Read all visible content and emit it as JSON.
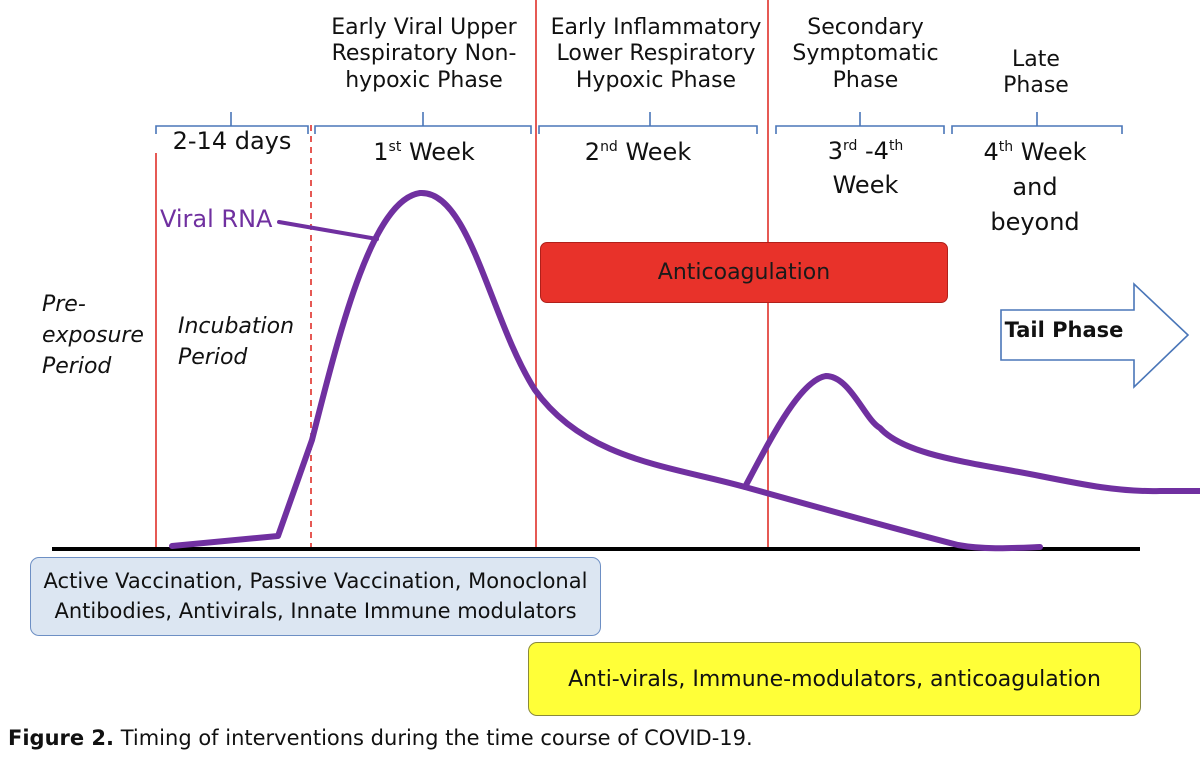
{
  "phases": {
    "early_viral": [
      "Early Viral Upper",
      "Respiratory Non-",
      "hypoxic Phase"
    ],
    "early_inflammatory": [
      "Early Inflammatory",
      "Lower Respiratory",
      "Hypoxic Phase"
    ],
    "secondary": [
      "Secondary",
      "Symptomatic",
      "Phase"
    ],
    "late": [
      "Late",
      "Phase"
    ]
  },
  "periods": {
    "incubation_days": "2-14 days",
    "week1_num": "1",
    "week1_sup": "st",
    "week1_rest": " Week",
    "week2_num": "2",
    "week2_sup": "nd",
    "week2_rest": " Week",
    "week34_a": "3",
    "week34_a_sup": "rd",
    "week34_sep": " -4",
    "week34_b_sup": "th",
    "week34_line2": "Week",
    "week4_num": "4",
    "week4_sup": "th",
    "week4_rest": " Week",
    "week4_line2": "and",
    "week4_line3": "beyond"
  },
  "labels": {
    "viral_rna": "Viral RNA",
    "pre_exposure": [
      "Pre-",
      "exposure",
      "Period"
    ],
    "incubation": [
      "Incubation",
      "Period"
    ],
    "tail_phase": "Tail Phase"
  },
  "boxes": {
    "anticoagulation": "Anticoagulation",
    "early_interventions": [
      "Active Vaccination, Passive Vaccination, Monoclonal",
      "Antibodies, Antivirals, Innate Immune modulators"
    ],
    "late_interventions": "Anti-virals, Immune-modulators, anticoagulation"
  },
  "caption": {
    "label": "Figure 2.",
    "text": " Timing of interventions during the time course of COVID-19."
  },
  "colors": {
    "viral_curve": "#7030a0",
    "phase_divider": "#e0302a",
    "bracket": "#4a76b8",
    "anticoagulation_box": "#e8322a",
    "early_box": "#dce6f2",
    "late_box": "#ffff38"
  }
}
